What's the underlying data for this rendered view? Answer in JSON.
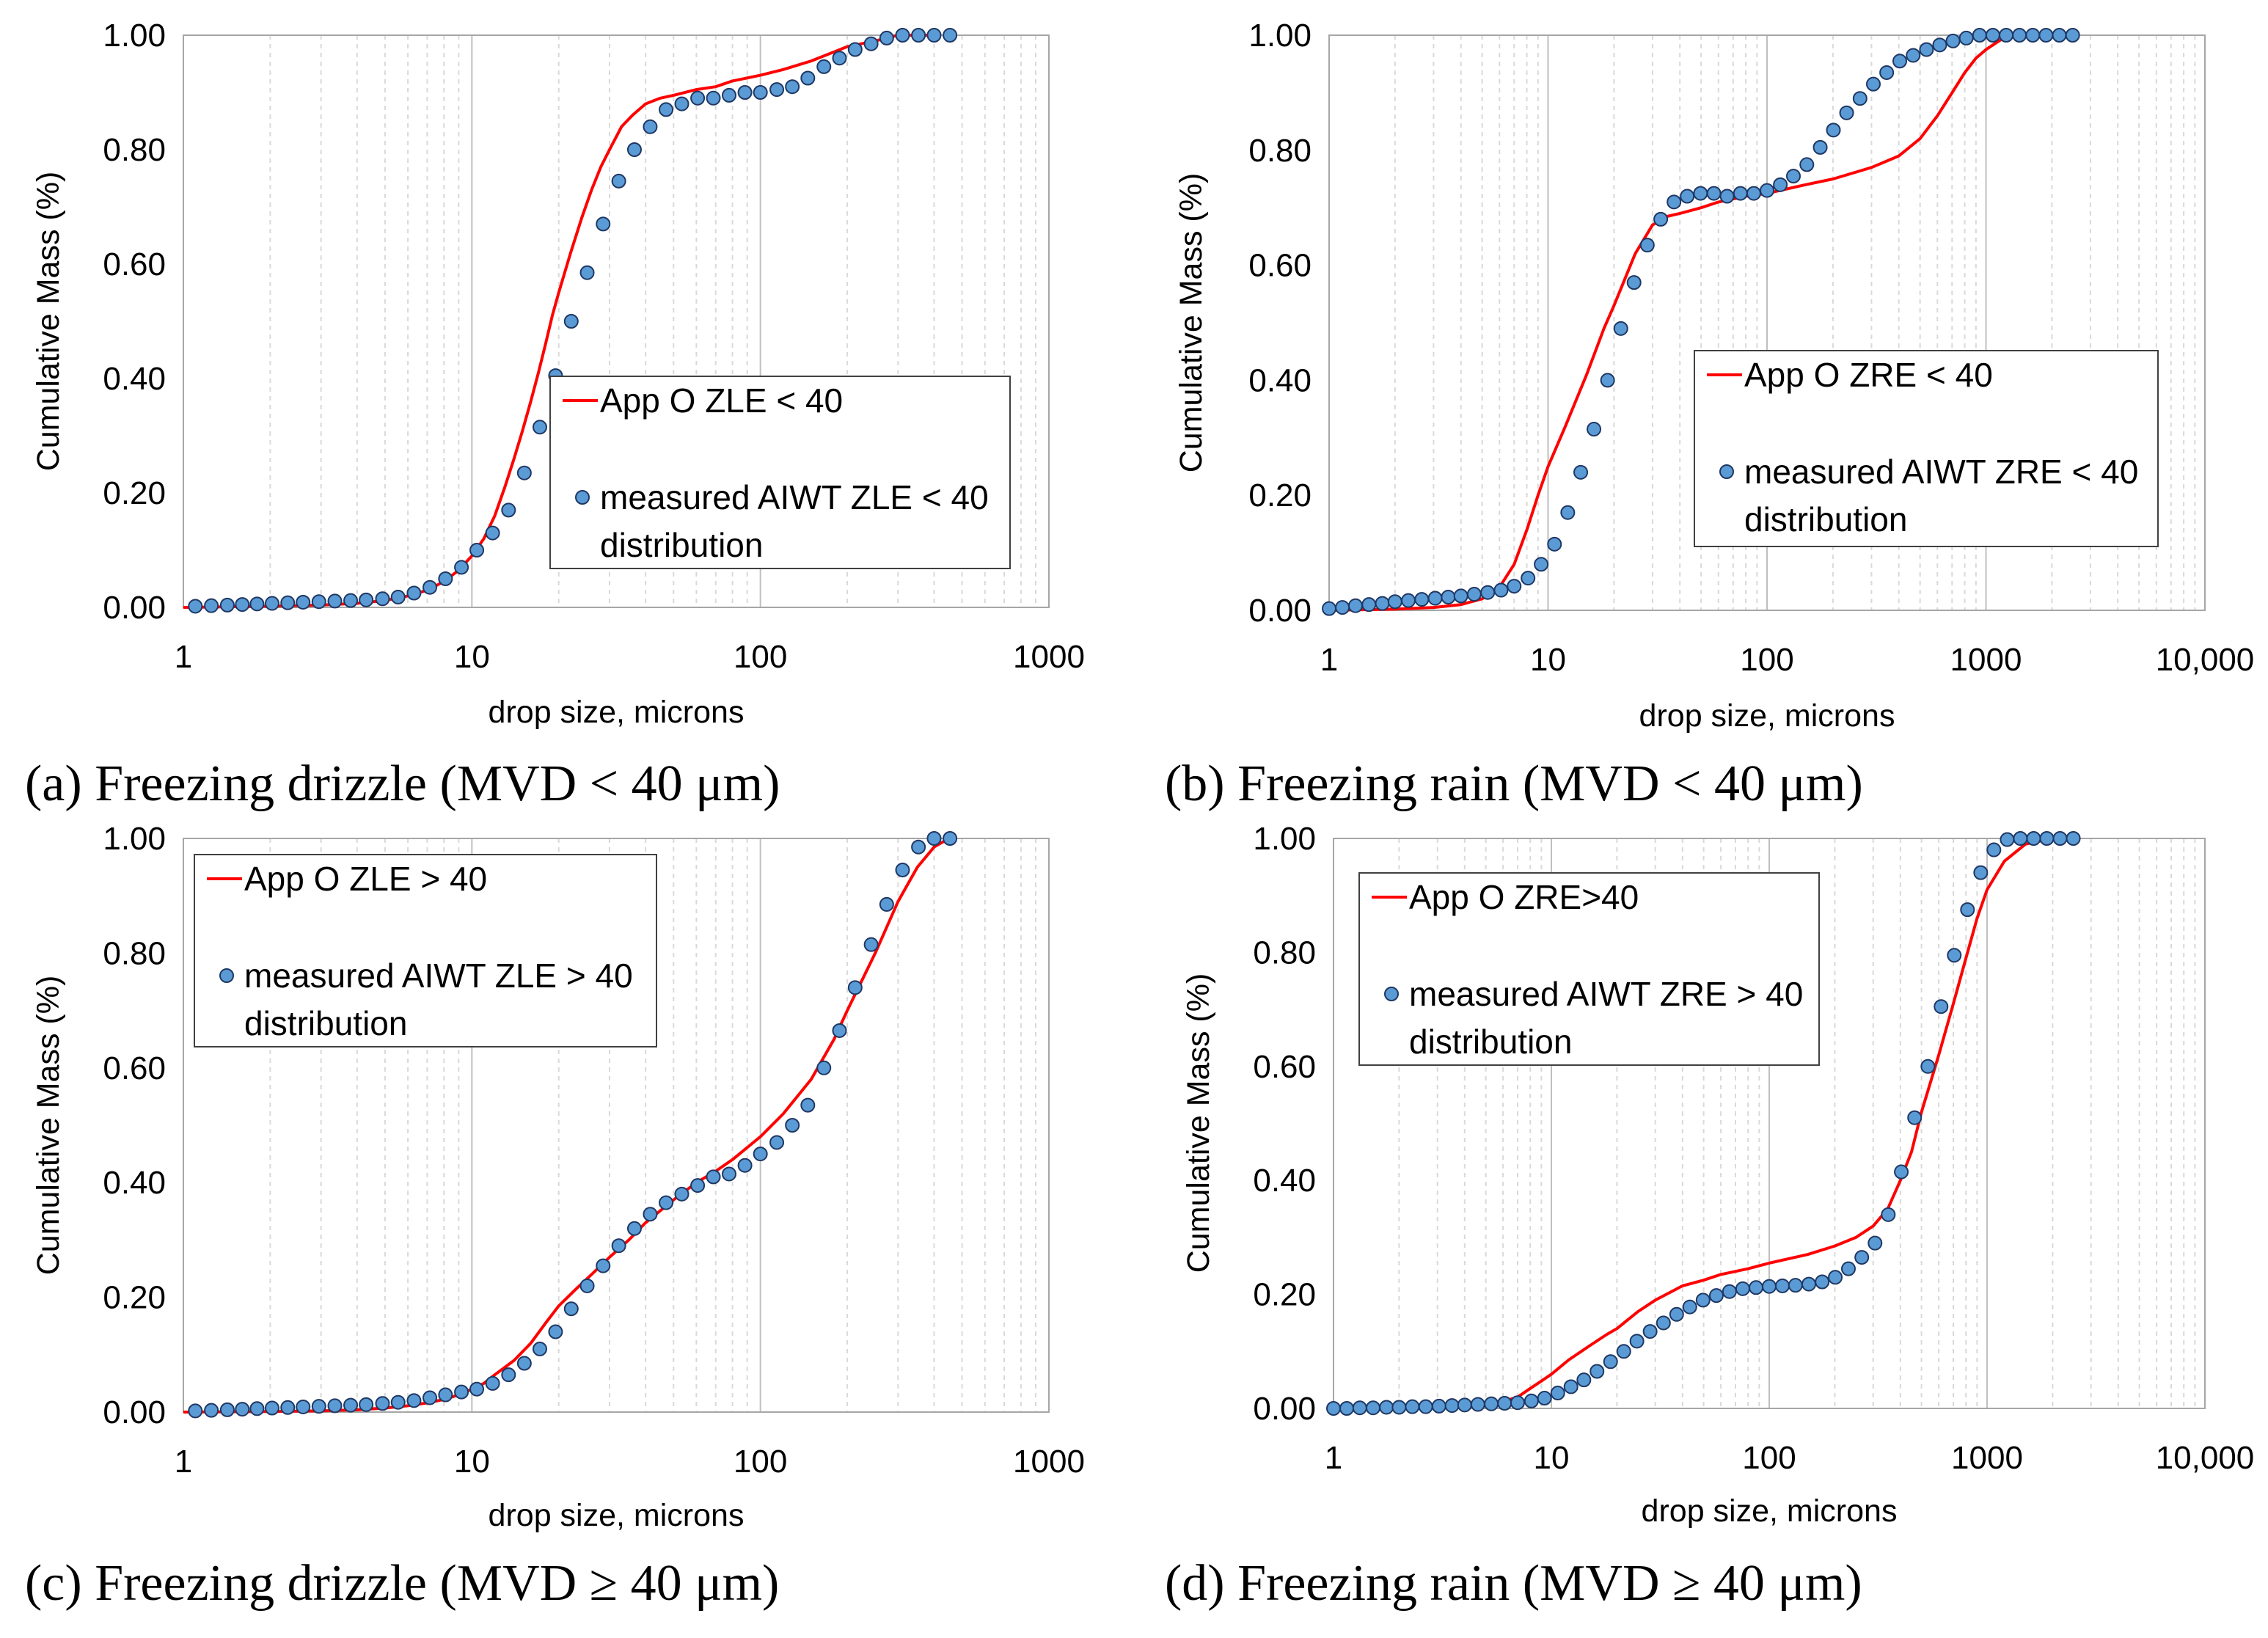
{
  "captions": {
    "a": "(a) Freezing drizzle (MVD < 40 μm)",
    "b": "(b) Freezing rain (MVD < 40 μm)",
    "c": "(c) Freezing drizzle (MVD ≥ 40 μm)",
    "d": "(d) Freezing rain (MVD ≥ 40 μm)"
  },
  "colors": {
    "line": "#ff0000",
    "marker_fill": "#5b9bd5",
    "marker_stroke": "#1f3864",
    "major_grid": "#bfbfbf",
    "minor_grid": "#d9d9d9",
    "frame": "#a6a6a6"
  },
  "chart_data": [
    {
      "type": "scatter",
      "panel": "a",
      "xscale": "log",
      "xlim": [
        1,
        1000
      ],
      "ylim": [
        0,
        1
      ],
      "xticks": [
        1,
        10,
        100,
        1000
      ],
      "xtick_labels": [
        "1",
        "10",
        "100",
        "1000"
      ],
      "yticks": [
        0,
        0.2,
        0.4,
        0.6,
        0.8,
        1.0
      ],
      "ytick_labels": [
        "0.00",
        "0.20",
        "0.40",
        "0.60",
        "0.80",
        "1.00"
      ],
      "xlabel": "drop size, microns",
      "ylabel": "Cumulative Mass (%)",
      "legend_lines": [
        "App O ZLE < 40",
        "measured AIWT ZLE < 40",
        "distribution"
      ],
      "legend_position": "center-right",
      "series": [
        {
          "name": "App O ZLE < 40",
          "kind": "line",
          "x": [
            1,
            2,
            3,
            4,
            5,
            6,
            7,
            8,
            9,
            10,
            11,
            12,
            13,
            14,
            15,
            16,
            17,
            18,
            19,
            20,
            22,
            24,
            26,
            28,
            30,
            33,
            36,
            40,
            45,
            50,
            60,
            70,
            80,
            100,
            120,
            150,
            200,
            250,
            300,
            400
          ],
          "y": [
            0,
            0.002,
            0.004,
            0.007,
            0.012,
            0.02,
            0.03,
            0.045,
            0.065,
            0.09,
            0.12,
            0.16,
            0.21,
            0.26,
            0.31,
            0.36,
            0.41,
            0.46,
            0.51,
            0.55,
            0.62,
            0.68,
            0.73,
            0.77,
            0.8,
            0.84,
            0.86,
            0.88,
            0.89,
            0.895,
            0.905,
            0.91,
            0.92,
            0.93,
            0.94,
            0.955,
            0.98,
            0.99,
            1.0,
            1.0
          ]
        },
        {
          "name": "measured AIWT ZLE < 40 distribution",
          "kind": "points",
          "x": [
            1.1,
            1.25,
            1.42,
            1.6,
            1.8,
            2.03,
            2.3,
            2.6,
            2.95,
            3.35,
            3.8,
            4.3,
            4.9,
            5.55,
            6.3,
            7.15,
            8.1,
            9.2,
            10.4,
            11.8,
            13.4,
            15.2,
            17.2,
            19.5,
            22.1,
            25.1,
            28.5,
            32.3,
            36.6,
            41.5,
            47.1,
            53.4,
            60.6,
            68.7,
            77.9,
            88.4,
            100,
            114,
            129,
            146,
            166,
            188,
            213,
            242,
            274,
            311,
            353,
            400,
            454
          ],
          "y": [
            0.002,
            0.003,
            0.004,
            0.005,
            0.006,
            0.007,
            0.008,
            0.009,
            0.01,
            0.011,
            0.012,
            0.013,
            0.015,
            0.018,
            0.025,
            0.035,
            0.05,
            0.07,
            0.1,
            0.13,
            0.17,
            0.235,
            0.315,
            0.405,
            0.5,
            0.585,
            0.67,
            0.745,
            0.8,
            0.84,
            0.87,
            0.88,
            0.89,
            0.89,
            0.895,
            0.9,
            0.9,
            0.905,
            0.91,
            0.925,
            0.945,
            0.96,
            0.975,
            0.985,
            0.995,
            1.0,
            1.0,
            1.0,
            1.0
          ]
        }
      ]
    },
    {
      "type": "scatter",
      "panel": "b",
      "xscale": "log",
      "xlim": [
        1,
        10000
      ],
      "ylim": [
        0,
        1
      ],
      "xticks": [
        1,
        10,
        100,
        1000,
        10000
      ],
      "xtick_labels": [
        "1",
        "10",
        "100",
        "1000",
        "10,000"
      ],
      "yticks": [
        0,
        0.2,
        0.4,
        0.6,
        0.8,
        1.0
      ],
      "ytick_labels": [
        "0.00",
        "0.20",
        "0.40",
        "0.60",
        "0.80",
        "1.00"
      ],
      "xlabel": "drop size, microns",
      "ylabel": "Cumulative Mass (%)",
      "legend_lines": [
        "App O ZRE < 40",
        "measured AIWT ZRE < 40",
        "distribution"
      ],
      "legend_position": "center-right",
      "series": [
        {
          "name": "App O ZRE < 40",
          "kind": "line",
          "x": [
            1,
            2,
            3,
            4,
            5,
            6,
            7,
            8,
            9,
            10,
            12,
            15,
            18,
            20,
            25,
            30,
            35,
            40,
            50,
            60,
            80,
            100,
            150,
            200,
            300,
            400,
            500,
            600,
            700,
            800,
            900,
            1000,
            1200,
            1500,
            2000
          ],
          "y": [
            0,
            0.002,
            0.005,
            0.01,
            0.02,
            0.04,
            0.08,
            0.14,
            0.2,
            0.25,
            0.32,
            0.41,
            0.49,
            0.53,
            0.62,
            0.67,
            0.685,
            0.69,
            0.7,
            0.71,
            0.72,
            0.725,
            0.74,
            0.75,
            0.77,
            0.79,
            0.82,
            0.86,
            0.9,
            0.935,
            0.96,
            0.975,
            0.995,
            1.0,
            1.0
          ]
        },
        {
          "name": "measured AIWT ZRE < 40 distribution",
          "kind": "points",
          "x": [
            1.0,
            1.15,
            1.32,
            1.52,
            1.75,
            2.0,
            2.3,
            2.65,
            3.05,
            3.5,
            4.0,
            4.6,
            5.3,
            6.1,
            7.0,
            8.1,
            9.3,
            10.7,
            12.3,
            14.1,
            16.2,
            18.7,
            21.5,
            24.7,
            28.4,
            32.7,
            37.6,
            43.2,
            49.7,
            57.2,
            65.7,
            75.6,
            87,
            100,
            115,
            132,
            152,
            175,
            201,
            231,
            266,
            306,
            352,
            404,
            465,
            535,
            615,
            707,
            813,
            935,
            1075,
            1237,
            1422,
            1636,
            1881,
            2163,
            2488
          ],
          "y": [
            0.003,
            0.005,
            0.008,
            0.01,
            0.012,
            0.015,
            0.017,
            0.019,
            0.021,
            0.023,
            0.025,
            0.028,
            0.031,
            0.035,
            0.042,
            0.056,
            0.08,
            0.115,
            0.17,
            0.24,
            0.315,
            0.4,
            0.49,
            0.57,
            0.635,
            0.68,
            0.71,
            0.72,
            0.725,
            0.725,
            0.72,
            0.725,
            0.725,
            0.73,
            0.74,
            0.755,
            0.775,
            0.805,
            0.835,
            0.865,
            0.89,
            0.915,
            0.935,
            0.955,
            0.965,
            0.975,
            0.983,
            0.99,
            0.995,
            1.0,
            1.0,
            1.0,
            1.0,
            1.0,
            1.0,
            1.0,
            1.0
          ]
        }
      ]
    },
    {
      "type": "scatter",
      "panel": "c",
      "xscale": "log",
      "xlim": [
        1,
        1000
      ],
      "ylim": [
        0,
        1
      ],
      "xticks": [
        1,
        10,
        100,
        1000
      ],
      "xtick_labels": [
        "1",
        "10",
        "100",
        "1000"
      ],
      "yticks": [
        0,
        0.2,
        0.4,
        0.6,
        0.8,
        1.0
      ],
      "ytick_labels": [
        "0.00",
        "0.20",
        "0.40",
        "0.60",
        "0.80",
        "1.00"
      ],
      "xlabel": "drop size, microns",
      "ylabel": "Cumulative Mass (%)",
      "legend_lines": [
        "App O ZLE > 40",
        "measured AIWT ZLE > 40",
        "distribution"
      ],
      "legend_position": "top-left",
      "series": [
        {
          "name": "App O ZLE > 40",
          "kind": "line",
          "x": [
            1,
            2,
            3,
            4,
            5,
            6,
            7,
            8,
            9,
            10,
            11,
            12,
            14,
            16,
            18,
            20,
            23,
            26,
            30,
            35,
            40,
            50,
            60,
            70,
            80,
            100,
            120,
            150,
            180,
            200,
            250,
            300,
            350,
            400,
            450
          ],
          "y": [
            0,
            0.001,
            0.002,
            0.004,
            0.007,
            0.011,
            0.016,
            0.022,
            0.03,
            0.04,
            0.05,
            0.065,
            0.09,
            0.12,
            0.155,
            0.185,
            0.215,
            0.24,
            0.27,
            0.3,
            0.33,
            0.37,
            0.4,
            0.42,
            0.44,
            0.48,
            0.52,
            0.58,
            0.65,
            0.7,
            0.8,
            0.89,
            0.95,
            0.985,
            1.0
          ]
        },
        {
          "name": "measured AIWT ZLE > 40 distribution",
          "kind": "points",
          "x": [
            1.1,
            1.25,
            1.42,
            1.6,
            1.8,
            2.03,
            2.3,
            2.6,
            2.95,
            3.35,
            3.8,
            4.3,
            4.9,
            5.55,
            6.3,
            7.15,
            8.1,
            9.2,
            10.4,
            11.8,
            13.4,
            15.2,
            17.2,
            19.5,
            22.1,
            25.1,
            28.5,
            32.3,
            36.6,
            41.5,
            47.1,
            53.4,
            60.6,
            68.7,
            77.9,
            88.4,
            100,
            114,
            129,
            146,
            166,
            188,
            213,
            242,
            274,
            311,
            353,
            400,
            454
          ],
          "y": [
            0.002,
            0.003,
            0.004,
            0.005,
            0.006,
            0.007,
            0.008,
            0.009,
            0.01,
            0.011,
            0.012,
            0.013,
            0.015,
            0.017,
            0.02,
            0.025,
            0.03,
            0.035,
            0.04,
            0.05,
            0.065,
            0.085,
            0.11,
            0.14,
            0.18,
            0.22,
            0.255,
            0.29,
            0.32,
            0.345,
            0.365,
            0.38,
            0.395,
            0.41,
            0.415,
            0.43,
            0.45,
            0.47,
            0.5,
            0.535,
            0.6,
            0.665,
            0.74,
            0.815,
            0.885,
            0.945,
            0.985,
            1.0,
            1.0
          ]
        }
      ]
    },
    {
      "type": "scatter",
      "panel": "d",
      "xscale": "log",
      "xlim": [
        1,
        10000
      ],
      "ylim": [
        0,
        1
      ],
      "xticks": [
        1,
        10,
        100,
        1000,
        10000
      ],
      "xtick_labels": [
        "1",
        "10",
        "100",
        "1000",
        "10,000"
      ],
      "yticks": [
        0,
        0.2,
        0.4,
        0.6,
        0.8,
        1.0
      ],
      "ytick_labels": [
        "0.00",
        "0.20",
        "0.40",
        "0.60",
        "0.80",
        "1.00"
      ],
      "xlabel": "drop size, microns",
      "ylabel": "Cumulative Mass (%)",
      "legend_lines": [
        "App O ZRE>40",
        "measured AIWT ZRE > 40",
        "distribution"
      ],
      "legend_position": "top-left",
      "series": [
        {
          "name": "App O ZRE>40",
          "kind": "line",
          "x": [
            1,
            2,
            3,
            4,
            5,
            6,
            7,
            8,
            9,
            10,
            12,
            15,
            18,
            20,
            25,
            30,
            40,
            50,
            60,
            80,
            100,
            150,
            200,
            250,
            300,
            350,
            400,
            450,
            500,
            600,
            700,
            800,
            900,
            1000,
            1200,
            1500,
            2000
          ],
          "y": [
            0,
            0.001,
            0.002,
            0.004,
            0.007,
            0.012,
            0.02,
            0.035,
            0.048,
            0.06,
            0.085,
            0.11,
            0.13,
            0.14,
            0.17,
            0.19,
            0.215,
            0.225,
            0.235,
            0.245,
            0.255,
            0.27,
            0.285,
            0.3,
            0.32,
            0.35,
            0.4,
            0.45,
            0.52,
            0.62,
            0.71,
            0.79,
            0.86,
            0.91,
            0.96,
            0.99,
            1.0
          ]
        },
        {
          "name": "measured AIWT ZRE > 40 distribution",
          "kind": "points",
          "x": [
            1.0,
            1.15,
            1.32,
            1.52,
            1.75,
            2.0,
            2.3,
            2.65,
            3.05,
            3.5,
            4.0,
            4.6,
            5.3,
            6.1,
            7.0,
            8.1,
            9.3,
            10.7,
            12.3,
            14.1,
            16.2,
            18.7,
            21.5,
            24.7,
            28.4,
            32.7,
            37.6,
            43.2,
            49.7,
            57.2,
            65.7,
            75.6,
            87,
            100,
            115,
            132,
            152,
            175,
            201,
            231,
            266,
            306,
            352,
            404,
            465,
            535,
            615,
            707,
            813,
            935,
            1075,
            1237,
            1422,
            1636,
            1881,
            2163,
            2488
          ],
          "y": [
            0.0,
            0.0,
            0.001,
            0.001,
            0.002,
            0.002,
            0.003,
            0.003,
            0.004,
            0.005,
            0.006,
            0.007,
            0.008,
            0.009,
            0.01,
            0.013,
            0.018,
            0.027,
            0.038,
            0.05,
            0.065,
            0.082,
            0.1,
            0.118,
            0.135,
            0.15,
            0.165,
            0.178,
            0.19,
            0.198,
            0.205,
            0.21,
            0.212,
            0.214,
            0.215,
            0.216,
            0.218,
            0.222,
            0.23,
            0.245,
            0.265,
            0.29,
            0.34,
            0.415,
            0.51,
            0.6,
            0.705,
            0.795,
            0.875,
            0.94,
            0.98,
            0.998,
            1.0,
            1.0,
            1.0,
            1.0,
            1.0
          ]
        }
      ]
    }
  ]
}
